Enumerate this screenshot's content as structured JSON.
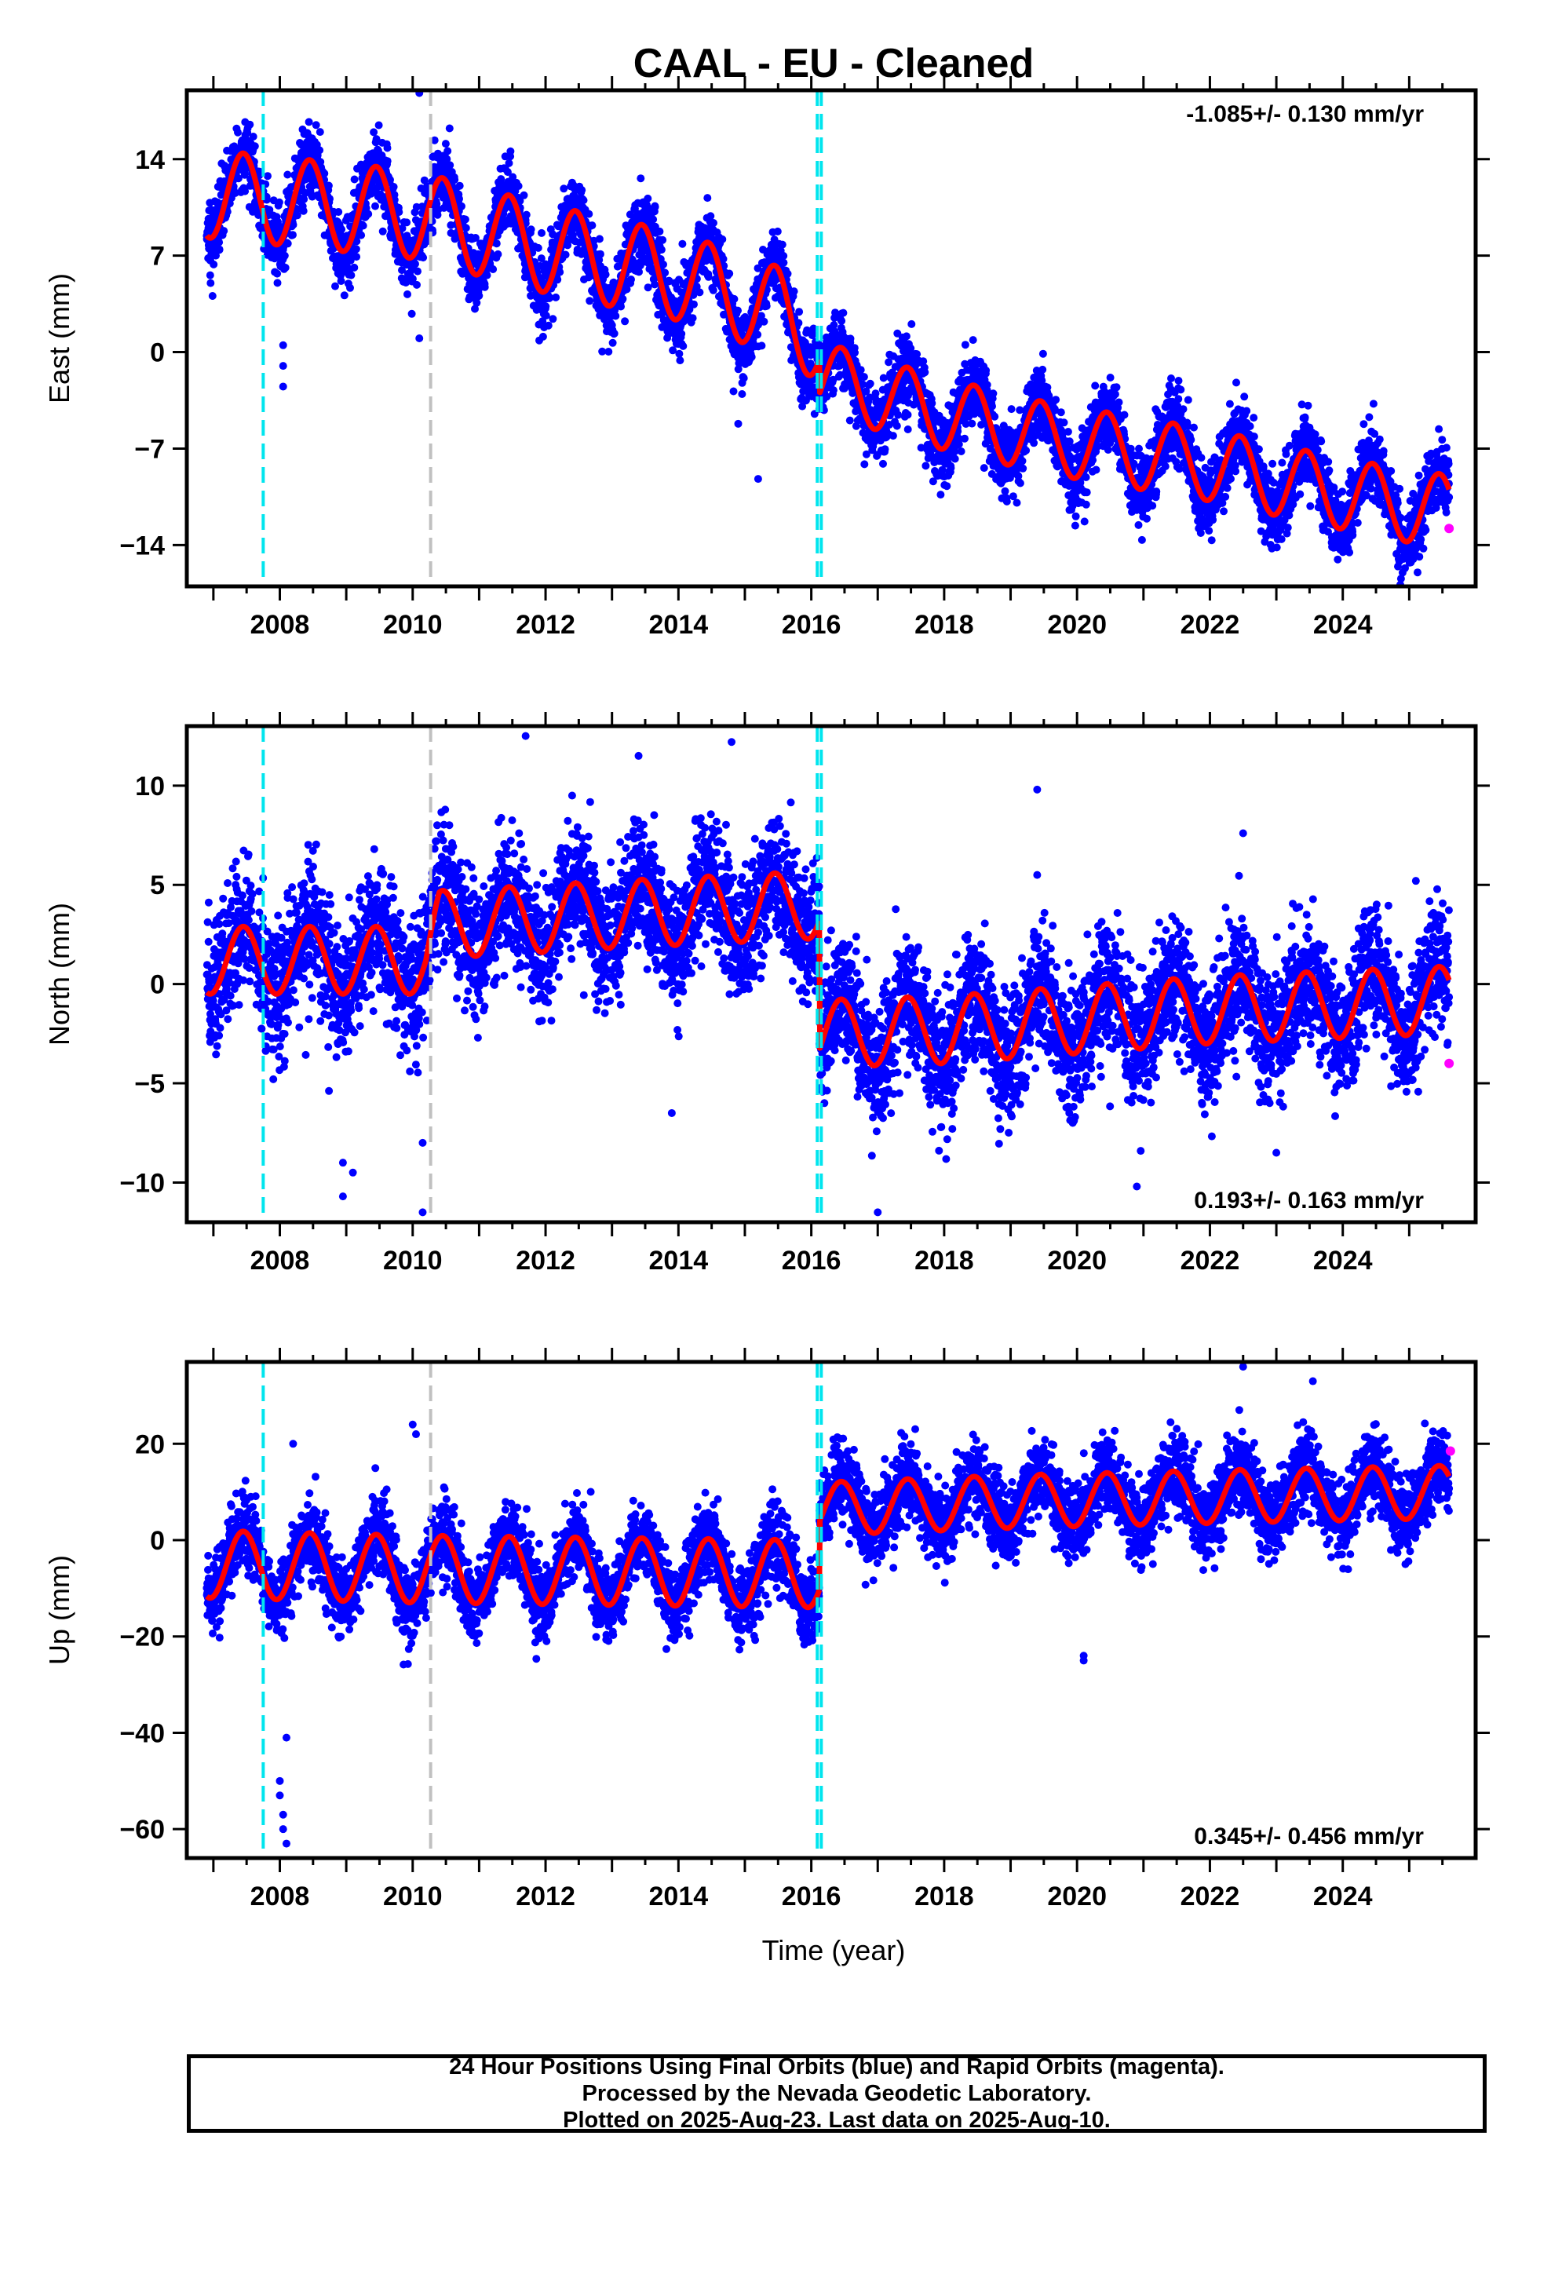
{
  "title": "CAAL  - EU - Cleaned",
  "xlabel": "Time (year)",
  "footer": {
    "line1": "24 Hour Positions Using Final Orbits (blue) and Rapid Orbits (magenta).",
    "line2": "Processed by the Nevada Geodetic Laboratory.",
    "line3": "Plotted on 2025-Aug-23. Last data on 2025-Aug-10."
  },
  "colors": {
    "final_points": "#0000ff",
    "rapid_points": "#ff00ff",
    "model_fit": "#ff0000",
    "equipment_change_line": "#00e5ee",
    "other_event_line": "#c0c0c0"
  },
  "chart_data": [
    {
      "type": "scatter",
      "component": "East",
      "ylabel": "East (mm)",
      "rate_text": "-1.085+/- 0.130 mm/yr",
      "rate_position": "top-right",
      "xlim": [
        2006.6,
        2026.0
      ],
      "ylim": [
        -17,
        19
      ],
      "yticks": [
        14,
        7,
        0,
        -7,
        -14
      ],
      "ytick_labels": [
        "14",
        "7",
        "0",
        "−7",
        "−14"
      ],
      "xticks": [
        2008,
        2010,
        2012,
        2014,
        2016,
        2018,
        2020,
        2022,
        2024
      ],
      "event_lines": [
        {
          "x": 2007.75,
          "style": "cyan"
        },
        {
          "x": 2010.27,
          "style": "gray"
        },
        {
          "x": 2016.09,
          "style": "cyan"
        },
        {
          "x": 2016.15,
          "style": "cyan"
        }
      ],
      "model": {
        "segments": [
          {
            "from": 2006.9,
            "to": 2016.12,
            "anchors": [
              [
                2006.9,
                11.5
              ],
              [
                2010.0,
                10.0
              ],
              [
                2012.0,
                7.5
              ],
              [
                2014.0,
                5.5
              ],
              [
                2015.5,
                3.0
              ],
              [
                2016.12,
                1.0
              ]
            ],
            "amplitude": 3.2
          },
          {
            "from": 2016.12,
            "to": 2025.6,
            "anchors": [
              [
                2016.12,
                -1.8
              ],
              [
                2018.0,
                -4.5
              ],
              [
                2019.5,
                -6.2
              ],
              [
                2020.5,
                -7.0
              ],
              [
                2022.0,
                -8.2
              ],
              [
                2023.5,
                -9.8
              ],
              [
                2025.0,
                -11.2
              ],
              [
                2025.6,
                -11.5
              ]
            ],
            "amplitude": 2.6
          }
        ],
        "phase_year": 2007.45
      },
      "scatter_sigma": 1.3,
      "outliers": [
        [
          2008.05,
          -1.0
        ],
        [
          2008.05,
          -2.5
        ],
        [
          2008.05,
          0.5
        ],
        [
          2010.1,
          18.8
        ],
        [
          2010.1,
          1.0
        ],
        [
          2015.2,
          -9.2
        ],
        [
          2014.9,
          -5.2
        ],
        [
          2024.9,
          -16.0
        ]
      ],
      "rapid_points": [
        [
          2025.6,
          -12.8
        ]
      ]
    },
    {
      "type": "scatter",
      "component": "North",
      "ylabel": "North (mm)",
      "rate_text": "0.193+/- 0.163 mm/yr",
      "rate_position": "bottom-right",
      "xlim": [
        2006.6,
        2026.0
      ],
      "ylim": [
        -12,
        13
      ],
      "yticks": [
        10,
        5,
        0,
        -5,
        -10
      ],
      "ytick_labels": [
        "10",
        "5",
        "0",
        "−5",
        "−10"
      ],
      "xticks": [
        2008,
        2010,
        2012,
        2014,
        2016,
        2018,
        2020,
        2022,
        2024
      ],
      "event_lines": [
        {
          "x": 2007.75,
          "style": "cyan"
        },
        {
          "x": 2010.27,
          "style": "gray"
        },
        {
          "x": 2016.09,
          "style": "cyan"
        },
        {
          "x": 2016.15,
          "style": "cyan"
        }
      ],
      "model": {
        "segments": [
          {
            "from": 2006.9,
            "to": 2016.12,
            "anchors": [
              [
                2006.9,
                1.2
              ],
              [
                2010.2,
                1.2
              ],
              [
                2010.4,
                3.0
              ],
              [
                2013.0,
                3.5
              ],
              [
                2016.12,
                4.0
              ]
            ],
            "amplitude": 1.7
          },
          {
            "from": 2016.12,
            "to": 2025.6,
            "anchors": [
              [
                2016.12,
                -2.5
              ],
              [
                2018.0,
                -2.3
              ],
              [
                2020.0,
                -1.8
              ],
              [
                2022.0,
                -1.3
              ],
              [
                2025.6,
                -0.8
              ]
            ],
            "amplitude": 1.7
          }
        ],
        "phase_year": 2007.45
      },
      "scatter_sigma": 1.6,
      "outliers": [
        [
          2008.95,
          -10.7
        ],
        [
          2008.95,
          -9.0
        ],
        [
          2009.1,
          -9.5
        ],
        [
          2010.15,
          -11.5
        ],
        [
          2010.15,
          -8.0
        ],
        [
          2011.7,
          12.5
        ],
        [
          2012.4,
          9.5
        ],
        [
          2013.4,
          11.5
        ],
        [
          2014.8,
          12.2
        ],
        [
          2013.9,
          -6.5
        ],
        [
          2017.0,
          -11.5
        ],
        [
          2019.4,
          9.8
        ],
        [
          2019.4,
          5.5
        ],
        [
          2020.9,
          -10.2
        ],
        [
          2022.5,
          7.6
        ],
        [
          2023.0,
          -8.5
        ],
        [
          2025.1,
          5.2
        ]
      ],
      "rapid_points": [
        [
          2025.6,
          -4.0
        ]
      ]
    },
    {
      "type": "scatter",
      "component": "Up",
      "ylabel": "Up (mm)",
      "rate_text": "0.345+/- 0.456 mm/yr",
      "rate_position": "bottom-right",
      "xlim": [
        2006.6,
        2026.0
      ],
      "ylim": [
        -66,
        37
      ],
      "yticks": [
        20,
        0,
        -20,
        -40,
        -60
      ],
      "ytick_labels": [
        "20",
        "0",
        "−20",
        "−40",
        "−60"
      ],
      "xticks": [
        2008,
        2010,
        2012,
        2014,
        2016,
        2018,
        2020,
        2022,
        2024
      ],
      "event_lines": [
        {
          "x": 2007.75,
          "style": "cyan"
        },
        {
          "x": 2010.27,
          "style": "gray"
        },
        {
          "x": 2016.09,
          "style": "cyan"
        },
        {
          "x": 2016.15,
          "style": "cyan"
        }
      ],
      "model": {
        "segments": [
          {
            "from": 2006.9,
            "to": 2016.12,
            "anchors": [
              [
                2006.9,
                -5.0
              ],
              [
                2010.0,
                -6.0
              ],
              [
                2013.0,
                -6.5
              ],
              [
                2016.12,
                -7.0
              ]
            ],
            "amplitude": 7.0
          },
          {
            "from": 2016.12,
            "to": 2025.6,
            "anchors": [
              [
                2016.12,
                6.5
              ],
              [
                2019.0,
                8.0
              ],
              [
                2022.0,
                9.0
              ],
              [
                2025.6,
                10.0
              ]
            ],
            "amplitude": 5.5
          }
        ],
        "phase_year": 2007.45
      },
      "scatter_sigma": 4.0,
      "outliers": [
        [
          2008.1,
          -41.0
        ],
        [
          2008.0,
          -50.0
        ],
        [
          2008.0,
          -53.0
        ],
        [
          2008.05,
          -57.0
        ],
        [
          2008.05,
          -60.0
        ],
        [
          2008.1,
          -63.0
        ],
        [
          2008.2,
          20.0
        ],
        [
          2010.0,
          24.0
        ],
        [
          2010.05,
          22.0
        ],
        [
          2020.1,
          -24.0
        ],
        [
          2020.1,
          -25.0
        ],
        [
          2022.5,
          36.0
        ],
        [
          2023.55,
          33.0
        ]
      ],
      "rapid_points": [
        [
          2025.62,
          18.5
        ]
      ]
    }
  ]
}
